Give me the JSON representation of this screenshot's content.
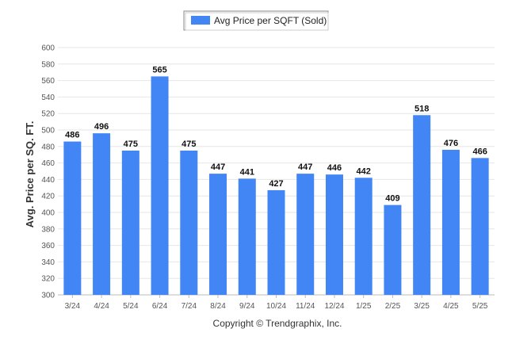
{
  "chart_data": {
    "type": "bar",
    "categories": [
      "3/24",
      "4/24",
      "5/24",
      "6/24",
      "7/24",
      "8/24",
      "9/24",
      "10/24",
      "11/24",
      "12/24",
      "1/25",
      "2/25",
      "3/25",
      "4/25",
      "5/25"
    ],
    "series": [
      {
        "name": "Avg Price per SQFT (Sold)",
        "values": [
          486,
          496,
          475,
          565,
          475,
          447,
          441,
          427,
          447,
          446,
          442,
          409,
          518,
          476,
          466
        ]
      }
    ],
    "xlabel": "",
    "ylabel": "Avg. Price per SQ. FT.",
    "ylim": [
      300,
      600
    ],
    "yticks": [
      300,
      320,
      340,
      360,
      380,
      400,
      420,
      440,
      460,
      480,
      500,
      520,
      540,
      560,
      580,
      600
    ],
    "grid": true,
    "legend_position": "top-center",
    "bar_color": "#4285f4",
    "credit": "Copyright © Trendgraphix, Inc."
  }
}
